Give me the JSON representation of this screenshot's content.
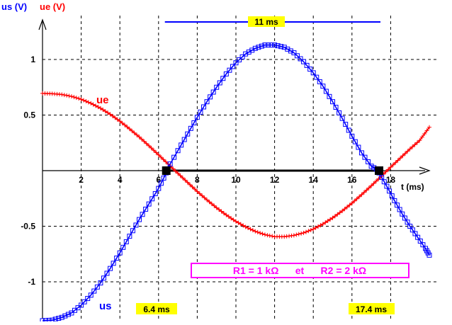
{
  "chart_data": {
    "type": "line",
    "title": "",
    "ylabel_left": "us (V)",
    "ylabel_right": "ue (V)",
    "xlabel": "t (ms)",
    "xlim": [
      0,
      20
    ],
    "ylim": [
      -1.35,
      1.25
    ],
    "x_ticks": [
      2,
      4,
      6,
      8,
      10,
      12,
      14,
      16,
      18
    ],
    "x_tick_labels": [
      "2",
      "4",
      "6",
      "8",
      "10",
      "12",
      "14",
      "16",
      "18"
    ],
    "y_ticks": [
      1,
      0.5,
      -0.5,
      -1
    ],
    "y_tick_labels": [
      "1",
      "0.5",
      "-0.5",
      "-1"
    ],
    "grid": true,
    "series": [
      {
        "name": "ue",
        "color": "#ff0000",
        "marker": "plus",
        "x": [
          0,
          0.5,
          1,
          1.5,
          2,
          2.5,
          3,
          3.5,
          4,
          4.5,
          5,
          5.5,
          6,
          6.5,
          7,
          7.5,
          8,
          8.5,
          9,
          9.5,
          10,
          10.5,
          11,
          11.5,
          12,
          12.5,
          13,
          13.5,
          14,
          14.5,
          15,
          15.5,
          16,
          16.5,
          17,
          17.5,
          18,
          18.5,
          19,
          19.5,
          20
        ],
        "y": [
          0.695,
          0.692,
          0.685,
          0.668,
          0.642,
          0.606,
          0.561,
          0.507,
          0.445,
          0.376,
          0.303,
          0.224,
          0.142,
          0.059,
          -0.024,
          -0.106,
          -0.187,
          -0.263,
          -0.334,
          -0.399,
          -0.457,
          -0.506,
          -0.546,
          -0.576,
          -0.594,
          -0.594,
          -0.582,
          -0.56,
          -0.526,
          -0.48,
          -0.425,
          -0.362,
          -0.292,
          -0.216,
          -0.136,
          -0.053,
          0.031,
          0.113,
          0.195,
          0.272,
          0.39
        ]
      },
      {
        "name": "us",
        "color": "#0000ff",
        "marker": "square",
        "x": [
          0,
          0.5,
          1,
          1.5,
          2,
          2.5,
          3,
          3.5,
          4,
          4.5,
          5,
          5.5,
          6,
          6.4
        ],
        "y": [
          -1.35,
          -1.345,
          -1.32,
          -1.28,
          -1.21,
          -1.12,
          -1.01,
          -0.88,
          -0.74,
          -0.59,
          -0.44,
          -0.3,
          -0.16,
          -0.02
        ]
      },
      {
        "name": "us",
        "color": "#0000ff",
        "marker": "square",
        "x": [
          6.4,
          7,
          7.5,
          8,
          8.5,
          9,
          9.5,
          10,
          10.5,
          11,
          11.5,
          12,
          12.5,
          13,
          13.5,
          14,
          14.5,
          15,
          15.5,
          16,
          16.5,
          17,
          17.4
        ],
        "y": [
          0,
          0.18,
          0.33,
          0.48,
          0.62,
          0.75,
          0.87,
          0.97,
          1.05,
          1.1,
          1.13,
          1.13,
          1.11,
          1.06,
          0.98,
          0.88,
          0.76,
          0.62,
          0.47,
          0.31,
          0.16,
          0.04,
          0
        ]
      },
      {
        "name": "us",
        "color": "#0000ff",
        "marker": "square",
        "x": [
          17.4,
          17.8,
          18.2,
          18.6,
          19,
          19.4,
          19.8,
          20
        ],
        "y": [
          -0.02,
          -0.14,
          -0.27,
          -0.39,
          -0.5,
          -0.6,
          -0.7,
          -0.76
        ]
      }
    ],
    "intersection_points": [
      {
        "x": 6.4,
        "y": 0
      },
      {
        "x": 17.4,
        "y": 0
      }
    ],
    "annotations": {
      "period_label": "11 ms",
      "time1_label": "6.4 ms",
      "time2_label": "17.4 ms",
      "series_label_ue": "ue",
      "series_label_us": "us",
      "resistors_label": "R1 = 1 kΩ      et      R2 = 2 kΩ"
    },
    "colors": {
      "highlight": "#ffff00",
      "resistors_box": "#ff00ff"
    }
  }
}
